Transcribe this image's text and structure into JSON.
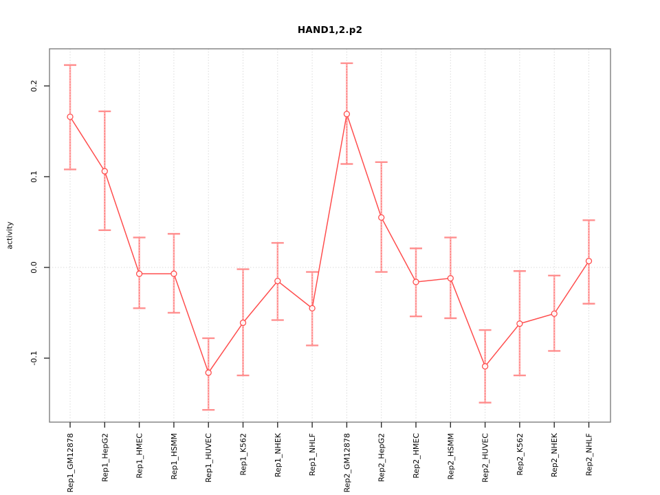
{
  "figure": {
    "title": "HAND1,2.p2",
    "background": "#ffffff"
  },
  "chart_data": {
    "type": "line",
    "title": "HAND1,2.p2",
    "xlabel": "",
    "ylabel": "activity",
    "legend": "none",
    "grid": {
      "vertical_dotted_per_category": true,
      "horizontal_dotted_at_zero": true
    },
    "categories": [
      "Rep1_GM12878",
      "Rep1_HepG2",
      "Rep1_HMEC",
      "Rep1_HSMM",
      "Rep1_HUVEC",
      "Rep1_K562",
      "Rep1_NHEK",
      "Rep1_NHLF",
      "Rep2_GM12878",
      "Rep2_HepG2",
      "Rep2_HMEC",
      "Rep2_HSMM",
      "Rep2_HUVEC",
      "Rep2_K562",
      "Rep2_NHEK",
      "Rep2_NHLF"
    ],
    "series": [
      {
        "name": "activity",
        "marker": "open-circle",
        "values": [
          0.166,
          0.106,
          -0.007,
          -0.007,
          -0.116,
          -0.061,
          -0.015,
          -0.045,
          0.169,
          0.055,
          -0.016,
          -0.012,
          -0.109,
          -0.062,
          -0.051,
          0.007
        ],
        "error_low": [
          0.108,
          0.041,
          -0.045,
          -0.05,
          -0.157,
          -0.119,
          -0.058,
          -0.086,
          0.114,
          -0.005,
          -0.054,
          -0.056,
          -0.149,
          -0.119,
          -0.092,
          -0.04
        ],
        "error_high": [
          0.223,
          0.172,
          0.033,
          0.037,
          -0.078,
          -0.002,
          0.027,
          -0.005,
          0.225,
          0.116,
          0.021,
          0.033,
          -0.069,
          -0.004,
          -0.009,
          0.052
        ]
      }
    ],
    "y_axis": {
      "ticks": [
        -0.1,
        0.0,
        0.1,
        0.2
      ],
      "tick_labels": [
        "-0.1",
        "0.0",
        "0.1",
        "0.2"
      ],
      "ylim": [
        -0.1705,
        0.2409
      ]
    },
    "colors": {
      "line": "#ff4d4d",
      "marker": "#ff4d4d",
      "error_bar_fill": "#ffb0b0",
      "error_bar_dotted": "#ff5c5c",
      "error_cap": "#ff8f8f",
      "gridline": "#d9d9d9",
      "frame": "#7d7d7d",
      "tick": "#2a2a2a",
      "text": "#000000"
    }
  }
}
